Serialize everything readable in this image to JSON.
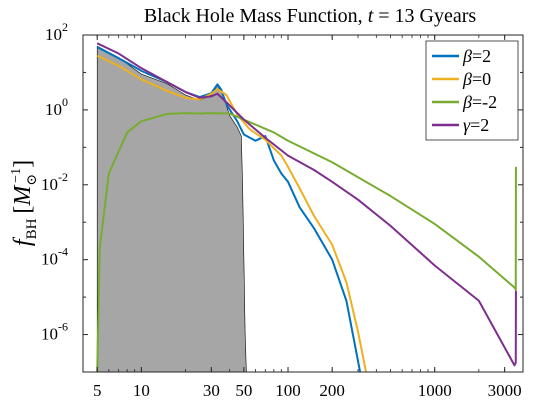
{
  "chart_data": {
    "type": "line",
    "title": "Black Hole Mass Function, t = 13 Gyears",
    "title_parts": {
      "prefix": "Black Hole Mass Function, ",
      "var": "t",
      "suffix": " = 13 Gyears"
    },
    "ylabel": "f_BH [M_⊙^-1]",
    "ylabel_parts": {
      "f": "f",
      "sub": "BH",
      "bracket_open": "[",
      "m": "M",
      "msub": "⊙",
      "msup": "−1",
      "bracket_close": "]"
    },
    "xscale": "log",
    "yscale": "log",
    "xlim": [
      4,
      4000
    ],
    "ylim": [
      1e-07,
      100
    ],
    "xticks": [
      {
        "value": 5,
        "label": "5"
      },
      {
        "value": 10,
        "label": "10"
      },
      {
        "value": 30,
        "label": "30"
      },
      {
        "value": 50,
        "label": "50"
      },
      {
        "value": 100,
        "label": "100"
      },
      {
        "value": 200,
        "label": "200"
      },
      {
        "value": 1000,
        "label": "1000"
      },
      {
        "value": 3000,
        "label": "3000"
      }
    ],
    "yticks": [
      {
        "value": 100,
        "base": "10",
        "exp": "2"
      },
      {
        "value": 1,
        "base": "10",
        "exp": "0"
      },
      {
        "value": 0.01,
        "base": "10",
        "exp": "-2"
      },
      {
        "value": 0.0001,
        "base": "10",
        "exp": "-4"
      },
      {
        "value": 1e-06,
        "base": "10",
        "exp": "-6"
      }
    ],
    "legend_position": "top-right",
    "grid": false,
    "shaded_region": {
      "color": "#a6a6a6",
      "points": [
        [
          5,
          1e-07
        ],
        [
          5,
          50
        ],
        [
          7,
          25
        ],
        [
          10,
          9
        ],
        [
          15,
          5
        ],
        [
          20,
          2.5
        ],
        [
          25,
          1.8
        ],
        [
          30,
          2.5
        ],
        [
          33,
          4.5
        ],
        [
          36,
          2.5
        ],
        [
          40,
          0.7
        ],
        [
          45,
          0.35
        ],
        [
          48,
          0.2
        ],
        [
          49,
          0.01
        ],
        [
          50,
          0.0001
        ],
        [
          51,
          1e-06
        ],
        [
          52,
          1e-07
        ]
      ]
    },
    "series": [
      {
        "name": "β=2",
        "sym": "β",
        "val": "=2",
        "color": "#0072bd",
        "points": [
          [
            5,
            48
          ],
          [
            7,
            24
          ],
          [
            9,
            14
          ],
          [
            10,
            11
          ],
          [
            15,
            5.5
          ],
          [
            20,
            3
          ],
          [
            25,
            2.2
          ],
          [
            30,
            2.8
          ],
          [
            33,
            4.8
          ],
          [
            35,
            3.5
          ],
          [
            38,
            1.4
          ],
          [
            45,
            0.5
          ],
          [
            50,
            0.22
          ],
          [
            60,
            0.15
          ],
          [
            70,
            0.2
          ],
          [
            80,
            0.045
          ],
          [
            90,
            0.02
          ],
          [
            100,
            0.012
          ],
          [
            120,
            0.0025
          ],
          [
            150,
            0.0007
          ],
          [
            200,
            0.0001
          ],
          [
            250,
            8e-06
          ],
          [
            310,
            1e-07
          ]
        ]
      },
      {
        "name": "β=0",
        "sym": "β",
        "val": "=0",
        "color": "#edb120",
        "points": [
          [
            5,
            28
          ],
          [
            7,
            15
          ],
          [
            10,
            6.5
          ],
          [
            15,
            3.2
          ],
          [
            20,
            2.1
          ],
          [
            25,
            1.9
          ],
          [
            30,
            2.7
          ],
          [
            33,
            3.6
          ],
          [
            38,
            2.5
          ],
          [
            45,
            0.75
          ],
          [
            55,
            0.3
          ],
          [
            70,
            0.16
          ],
          [
            90,
            0.06
          ],
          [
            100,
            0.03
          ],
          [
            120,
            0.008
          ],
          [
            150,
            0.0015
          ],
          [
            200,
            0.00025
          ],
          [
            250,
            2.5e-05
          ],
          [
            300,
            1.2e-06
          ],
          [
            340,
            1e-07
          ]
        ]
      },
      {
        "name": "β=-2",
        "sym": "β",
        "val": "=-2",
        "color": "#77ac30",
        "points": [
          [
            5,
            1e-07
          ],
          [
            5.2,
            0.0002
          ],
          [
            6,
            0.02
          ],
          [
            8,
            0.25
          ],
          [
            10,
            0.5
          ],
          [
            15,
            0.78
          ],
          [
            20,
            0.82
          ],
          [
            25,
            0.8
          ],
          [
            30,
            0.82
          ],
          [
            40,
            0.8
          ],
          [
            50,
            0.55
          ],
          [
            80,
            0.25
          ],
          [
            100,
            0.15
          ],
          [
            200,
            0.04
          ],
          [
            500,
            0.005
          ],
          [
            1000,
            0.0009
          ],
          [
            2000,
            0.00012
          ],
          [
            3500,
            1.8e-05
          ],
          [
            3570,
            1.6e-05
          ],
          [
            3580,
            0.03
          ]
        ]
      },
      {
        "name": "γ=2",
        "sym": "γ",
        "val": "=2",
        "color": "#7e2f8e",
        "points": [
          [
            5,
            60
          ],
          [
            7,
            32
          ],
          [
            10,
            13
          ],
          [
            15,
            5.5
          ],
          [
            20,
            3
          ],
          [
            25,
            2.1
          ],
          [
            30,
            2.3
          ],
          [
            33,
            2.7
          ],
          [
            38,
            1.6
          ],
          [
            50,
            0.55
          ],
          [
            70,
            0.18
          ],
          [
            100,
            0.06
          ],
          [
            150,
            0.025
          ],
          [
            200,
            0.012
          ],
          [
            300,
            0.004
          ],
          [
            500,
            0.0008
          ],
          [
            1000,
            7e-05
          ],
          [
            2000,
            8e-06
          ],
          [
            3500,
            1.5e-07
          ],
          [
            3570,
            1.8e-07
          ],
          [
            3580,
            1.5e-05
          ]
        ]
      }
    ]
  }
}
